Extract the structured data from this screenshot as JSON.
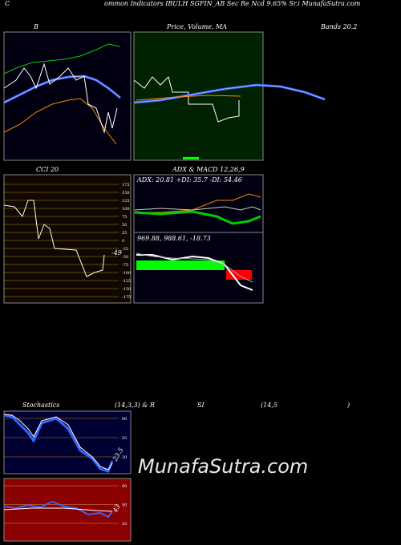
{
  "header": {
    "prefix": "C",
    "left": "ommon Indicators IBULH",
    "right": "SGFIN_AB Sec Re Ncd 9.65% Sr.i MunafaSutra.com"
  },
  "bands": {
    "title": "B",
    "right_title": "Bands 20.2"
  },
  "price": {
    "title": "Price, Volume, MA"
  },
  "cci": {
    "title": "CCI 20",
    "ticks": [
      175,
      150,
      125,
      100,
      75,
      50,
      25,
      0,
      -25,
      -50,
      -75,
      -100,
      -125,
      -150,
      -175
    ],
    "value_label": "-49"
  },
  "adx": {
    "title": "ADX  & MACD 12,26,9",
    "adx_text": "ADX: 20.81 +DI: 35.7 -DI: 54.46",
    "macd_text": "969.88, 988.61, -18.73"
  },
  "stoch": {
    "title": "Stochastics",
    "params": "(14,3,3) & R",
    "rsi_a": "SI",
    "rsi_b": "(14,5",
    "rsi_c": ")",
    "ticks": [
      80,
      50,
      20
    ],
    "value_label": "23.5"
  },
  "rsi": {
    "ticks": [
      80,
      50,
      20
    ],
    "value_label": "43"
  },
  "watermark": "MunafaSutra.com"
}
